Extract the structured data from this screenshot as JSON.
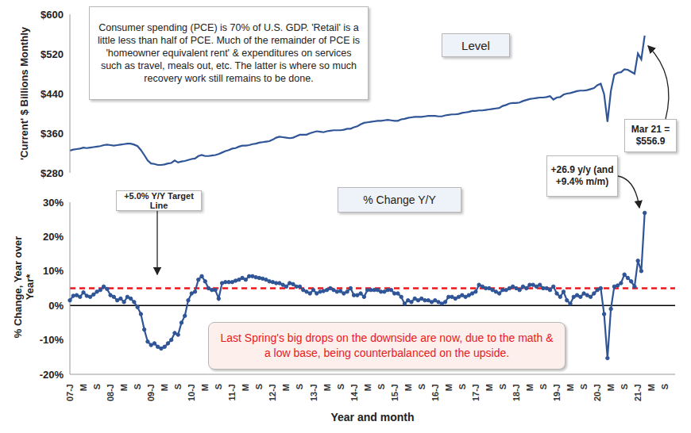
{
  "chart_data": [
    {
      "type": "line",
      "ylabel": "'Current' $ Billions Monthly",
      "annotations": [
        "Consumer spending (PCE) is 70% of U.S. GDP. 'Retail' is a little less than half of PCE. Much of the remainder of PCE is 'homeowner equivalent rent' & expenditures on services such as travel, meals out, etc. The latter is where so much recovery work still remains to be done.",
        "Level",
        "Mar 21 = $556.9"
      ],
      "categories": [
        "07-J",
        null,
        null,
        null,
        "M",
        null,
        null,
        null,
        "S",
        null,
        null,
        null,
        "08-J",
        null,
        null,
        null,
        "M",
        null,
        null,
        null,
        "S",
        null,
        null,
        null,
        "09-J",
        null,
        null,
        null,
        "M",
        null,
        null,
        null,
        "S",
        null,
        null,
        null,
        "10-J",
        null,
        null,
        null,
        "M",
        null,
        null,
        null,
        "S",
        null,
        null,
        null,
        "11-J",
        null,
        null,
        null,
        "M",
        null,
        null,
        null,
        "S",
        null,
        null,
        null,
        "12-J",
        null,
        null,
        null,
        "M",
        null,
        null,
        null,
        "S",
        null,
        null,
        null,
        "13-J",
        null,
        null,
        null,
        "M",
        null,
        null,
        null,
        "S",
        null,
        null,
        null,
        "14-J",
        null,
        null,
        null,
        "M",
        null,
        null,
        null,
        "S",
        null,
        null,
        null,
        "15-J",
        null,
        null,
        null,
        "M",
        null,
        null,
        null,
        "S",
        null,
        null,
        null,
        "16-J",
        null,
        null,
        null,
        "M",
        null,
        null,
        null,
        "S",
        null,
        null,
        null,
        "17-J",
        null,
        null,
        null,
        "M",
        null,
        null,
        null,
        "S",
        null,
        null,
        null,
        "18-J",
        null,
        null,
        null,
        "M",
        null,
        null,
        null,
        "S",
        null,
        null,
        null,
        "19-J",
        null,
        null,
        null,
        "M",
        null,
        null,
        null,
        "S",
        null,
        null,
        null,
        "20-J",
        null,
        null,
        null,
        "M",
        null,
        null,
        null,
        "S",
        null,
        null,
        null,
        "21-J",
        null,
        null,
        null,
        "M",
        null,
        null,
        null,
        "S",
        null,
        null,
        null
      ],
      "values": [
        325,
        327,
        328,
        329,
        331,
        330,
        331,
        332,
        333,
        334,
        336,
        337,
        336,
        335,
        336,
        337,
        338,
        339,
        339,
        337,
        334,
        326,
        316,
        305,
        299,
        298,
        296,
        296,
        297,
        299,
        300,
        305,
        301,
        303,
        304,
        306,
        308,
        309,
        314,
        316,
        314,
        314,
        315,
        316,
        318,
        321,
        324,
        326,
        329,
        330,
        333,
        335,
        335,
        336,
        338,
        339,
        341,
        342,
        343,
        344,
        347,
        351,
        353,
        352,
        351,
        350,
        351,
        354,
        357,
        357,
        357,
        360,
        362,
        364,
        363,
        362,
        364,
        365,
        366,
        366,
        366,
        367,
        369,
        369,
        372,
        374,
        378,
        381,
        382,
        383,
        384,
        385,
        385,
        386,
        387,
        386,
        385,
        385,
        388,
        389,
        391,
        392,
        393,
        393,
        393,
        394,
        395,
        395,
        395,
        394,
        394,
        396,
        397,
        398,
        398,
        399,
        401,
        402,
        403,
        405,
        405,
        406,
        406,
        407,
        408,
        409,
        410,
        411,
        415,
        417,
        420,
        421,
        421,
        422,
        425,
        427,
        429,
        430,
        431,
        432,
        432,
        433,
        435,
        428,
        432,
        433,
        438,
        440,
        441,
        443,
        445,
        446,
        446,
        447,
        449,
        451,
        457,
        460,
        439,
        383,
        445,
        478,
        482,
        483,
        489,
        488,
        484,
        480,
        521,
        509,
        556.9,
        null,
        null,
        null,
        null,
        null,
        null,
        null,
        null,
        null
      ],
      "color": "#2f5597",
      "marker": "none",
      "line_style": "solid",
      "ylim": [
        280,
        600
      ],
      "yticks": [
        {
          "value": 280,
          "label": "$280"
        },
        {
          "value": 360,
          "label": "$360"
        },
        {
          "value": 440,
          "label": "$440"
        },
        {
          "value": 520,
          "label": "$520"
        },
        {
          "value": 600,
          "label": "$600"
        }
      ],
      "tick_labels": "y",
      "grid": false
    },
    {
      "type": "line",
      "xlabel": "Year and month",
      "ylabel": "% Change, Year over Year*",
      "annotations": [
        "% Change Y/Y",
        "+26.9 y/y (and +9.4% m/m)",
        "Last Spring's big drops on the downside are now, due to the math & a low base, being counterbalanced on the upside."
      ],
      "reference_lines": [
        {
          "value": 5,
          "label": "+5.0% Y/Y Target Line",
          "color": "#e8191e",
          "line_style": "dashed"
        },
        {
          "value": 0,
          "color": "#000000",
          "line_style": "solid"
        }
      ],
      "categories": [
        "07-J",
        null,
        null,
        null,
        "M",
        null,
        null,
        null,
        "S",
        null,
        null,
        null,
        "08-J",
        null,
        null,
        null,
        "M",
        null,
        null,
        null,
        "S",
        null,
        null,
        null,
        "09-J",
        null,
        null,
        null,
        "M",
        null,
        null,
        null,
        "S",
        null,
        null,
        null,
        "10-J",
        null,
        null,
        null,
        "M",
        null,
        null,
        null,
        "S",
        null,
        null,
        null,
        "11-J",
        null,
        null,
        null,
        "M",
        null,
        null,
        null,
        "S",
        null,
        null,
        null,
        "12-J",
        null,
        null,
        null,
        "M",
        null,
        null,
        null,
        "S",
        null,
        null,
        null,
        "13-J",
        null,
        null,
        null,
        "M",
        null,
        null,
        null,
        "S",
        null,
        null,
        null,
        "14-J",
        null,
        null,
        null,
        "M",
        null,
        null,
        null,
        "S",
        null,
        null,
        null,
        "15-J",
        null,
        null,
        null,
        "M",
        null,
        null,
        null,
        "S",
        null,
        null,
        null,
        "16-J",
        null,
        null,
        null,
        "M",
        null,
        null,
        null,
        "S",
        null,
        null,
        null,
        "17-J",
        null,
        null,
        null,
        "M",
        null,
        null,
        null,
        "S",
        null,
        null,
        null,
        "18-J",
        null,
        null,
        null,
        "M",
        null,
        null,
        null,
        "S",
        null,
        null,
        null,
        "19-J",
        null,
        null,
        null,
        "M",
        null,
        null,
        null,
        "S",
        null,
        null,
        null,
        "20-J",
        null,
        null,
        null,
        "M",
        null,
        null,
        null,
        "S",
        null,
        null,
        null,
        "21-J",
        null,
        null,
        null,
        "M",
        null,
        null,
        null,
        "S",
        null,
        null,
        null
      ],
      "values": [
        1.5,
        2.8,
        3.0,
        2.5,
        3.8,
        2.8,
        2.5,
        3.2,
        4.0,
        4.5,
        5.5,
        4.8,
        3.0,
        2.5,
        1.5,
        2.0,
        1.0,
        2.5,
        2.0,
        1.0,
        -0.5,
        -2.5,
        -7.0,
        -10.5,
        -11.5,
        -11.0,
        -12.0,
        -12.5,
        -12.0,
        -11.0,
        -10.0,
        -8.0,
        -8.5,
        -5.0,
        -3.0,
        1.5,
        3.5,
        4.0,
        7.5,
        8.5,
        7.0,
        5.0,
        4.5,
        4.5,
        2.0,
        6.5,
        6.8,
        6.8,
        6.8,
        7.2,
        7.5,
        8.0,
        7.5,
        8.5,
        8.5,
        8.2,
        8.0,
        7.8,
        7.5,
        7.0,
        6.8,
        6.5,
        6.5,
        6.0,
        5.5,
        6.5,
        6.2,
        5.5,
        5.5,
        4.5,
        4.0,
        3.5,
        4.5,
        3.5,
        4.0,
        4.2,
        4.5,
        5.0,
        4.5,
        4.0,
        4.2,
        3.5,
        4.0,
        5.0,
        3.0,
        3.0,
        3.5,
        2.5,
        4.5,
        4.5,
        4.5,
        4.5,
        4.0,
        4.0,
        4.5,
        4.5,
        3.5,
        3.5,
        2.5,
        0.5,
        1.5,
        1.0,
        2.0,
        1.5,
        2.0,
        1.5,
        1.5,
        1.0,
        1.5,
        1.0,
        0.5,
        1.0,
        2.5,
        2.5,
        2.0,
        2.5,
        3.0,
        2.5,
        3.0,
        3.5,
        4.0,
        6.0,
        5.5,
        5.0,
        5.0,
        4.5,
        4.0,
        3.5,
        4.5,
        4.5,
        5.0,
        5.5,
        5.0,
        4.5,
        5.5,
        5.0,
        6.0,
        6.0,
        5.5,
        6.0,
        5.0,
        5.0,
        4.5,
        5.5,
        3.5,
        2.5,
        4.0,
        1.5,
        0.5,
        2.5,
        3.0,
        2.5,
        3.5,
        3.0,
        2.5,
        3.5,
        4.5,
        5.0,
        -2.5,
        -15.3,
        -1.0,
        5.5,
        5.8,
        6.5,
        9.0,
        8.0,
        7.0,
        5.5,
        13.0,
        10.0,
        26.9,
        null,
        null,
        null,
        null,
        null,
        null,
        null,
        null,
        null
      ],
      "color": "#2f5597",
      "marker": "circle",
      "line_style": "solid",
      "ylim": [
        -20,
        30
      ],
      "yticks": [
        {
          "value": -20,
          "label": "-20%"
        },
        {
          "value": -10,
          "label": "-10%"
        },
        {
          "value": 0,
          "label": "0%"
        },
        {
          "value": 10,
          "label": "10%"
        },
        {
          "value": 20,
          "label": "20%"
        },
        {
          "value": 30,
          "label": "30%"
        }
      ],
      "grid": false
    }
  ]
}
